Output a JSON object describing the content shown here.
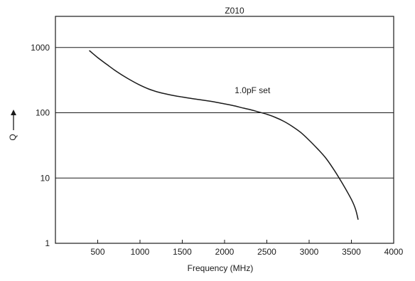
{
  "chart_data": {
    "type": "line",
    "title": "Z010",
    "xlabel": "Frequency (MHz)",
    "ylabel": "Q",
    "y_scale": "log",
    "xlim": [
      0,
      4000
    ],
    "ylim": [
      1,
      3000
    ],
    "x_ticks": [
      500,
      1000,
      1500,
      2000,
      2500,
      3000,
      3500,
      4000
    ],
    "x_tick_labels": [
      "500",
      "1000",
      "1500",
      "2000",
      "2500",
      "3000",
      "3500",
      "4000"
    ],
    "y_ticks": [
      1,
      10,
      100,
      1000
    ],
    "y_tick_labels": [
      "1",
      "10",
      "100",
      "1000"
    ],
    "grid": "horizontal",
    "annotations": [
      {
        "text": "1.0pF set",
        "x": 2120,
        "y": 200
      }
    ],
    "series": [
      {
        "x": [
          400,
          500,
          600,
          700,
          800,
          900,
          1000,
          1100,
          1200,
          1300,
          1400,
          1500,
          1600,
          1700,
          1800,
          1900,
          2000,
          2100,
          2200,
          2300,
          2400,
          2500,
          2600,
          2700,
          2800,
          2900,
          3000,
          3100,
          3200,
          3300,
          3400,
          3500,
          3550,
          3580
        ],
        "y": [
          900,
          700,
          560,
          450,
          370,
          310,
          265,
          232,
          210,
          195,
          183,
          174,
          166,
          159,
          152,
          145,
          137,
          129,
          120,
          112,
          103,
          95,
          85,
          74,
          62,
          50,
          38,
          28,
          20,
          13,
          8,
          4.7,
          3.3,
          2.3
        ]
      }
    ]
  }
}
